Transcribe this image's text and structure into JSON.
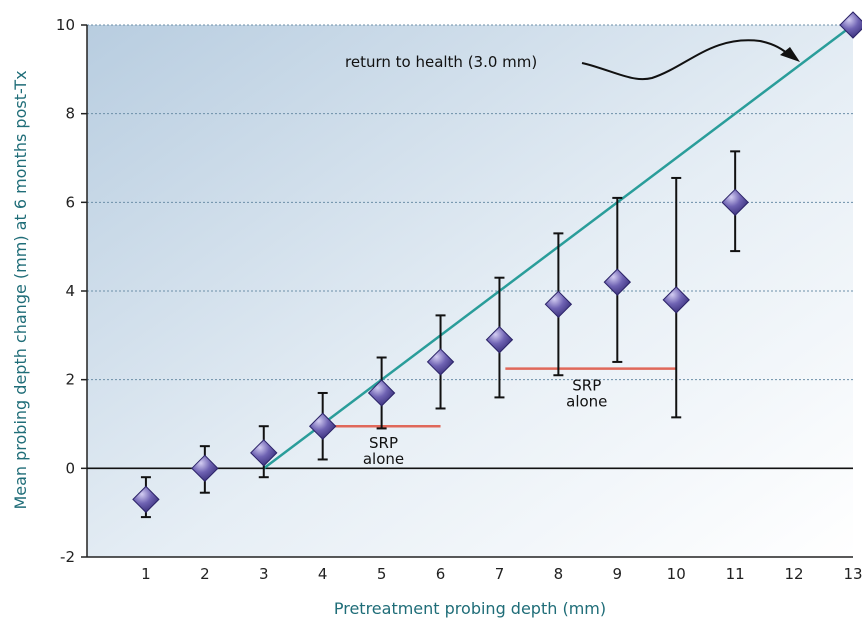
{
  "chart_data": {
    "type": "scatter",
    "title": "",
    "xlabel": "Pretreatment probing depth (mm)",
    "ylabel": "Mean probing depth change (mm) at 6 months post-Tx",
    "xlim": [
      0,
      13
    ],
    "ylim": [
      -2,
      10
    ],
    "x_ticks": [
      "1",
      "2",
      "3",
      "4",
      "5",
      "6",
      "7",
      "8",
      "9",
      "10",
      "11",
      "12",
      "13"
    ],
    "y_ticks": [
      "-2",
      "0",
      "2",
      "4",
      "6",
      "8",
      "10"
    ],
    "grid": "horizontal dashed",
    "series": [
      {
        "type": "scatter-errorbar",
        "points": [
          {
            "x": 1,
            "y": -0.7,
            "low": -1.1,
            "high": -0.2
          },
          {
            "x": 2,
            "y": 0.0,
            "low": -0.55,
            "high": 0.5
          },
          {
            "x": 3,
            "y": 0.35,
            "low": -0.2,
            "high": 0.95
          },
          {
            "x": 4,
            "y": 0.95,
            "low": 0.2,
            "high": 1.7
          },
          {
            "x": 5,
            "y": 1.7,
            "low": 0.9,
            "high": 2.5
          },
          {
            "x": 6,
            "y": 2.4,
            "low": 1.35,
            "high": 3.45
          },
          {
            "x": 7,
            "y": 2.9,
            "low": 1.6,
            "high": 4.3
          },
          {
            "x": 8,
            "y": 3.7,
            "low": 2.1,
            "high": 5.3
          },
          {
            "x": 9,
            "y": 4.2,
            "low": 2.4,
            "high": 6.1
          },
          {
            "x": 10,
            "y": 3.8,
            "low": 1.15,
            "high": 6.55
          },
          {
            "x": 11,
            "y": 6.0,
            "low": 4.9,
            "high": 7.15
          },
          {
            "x": 13,
            "y": 10.0
          }
        ]
      }
    ],
    "reference_line": {
      "x": [
        3,
        13
      ],
      "y": [
        0,
        10
      ],
      "color": "#2a9d9a"
    },
    "srp_ranges": [
      {
        "x": [
          4.2,
          6.0
        ],
        "y": 0.95,
        "label": [
          "SRP",
          "alone"
        ]
      },
      {
        "x": [
          7.1,
          10.0
        ],
        "y": 2.25,
        "label": [
          "SRP",
          "alone"
        ]
      }
    ],
    "annotation": {
      "text": "return to health (3.0 mm)"
    },
    "colors": {
      "marker": "#5a4f9e",
      "marker_light": "#c3bde8",
      "srp_line": "#e0685a",
      "grid": "#6c8fa8",
      "axis_title": "#1f6d78"
    }
  }
}
